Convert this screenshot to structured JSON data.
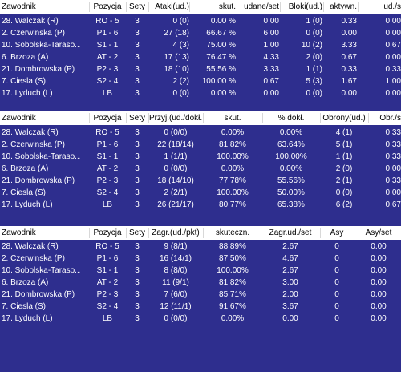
{
  "tables": [
    {
      "columns": [
        "Zawodnik",
        "Pozycja",
        "Sety",
        "Ataki(ud.)",
        "skut.",
        "udane/set",
        "Bloki(ud.)",
        "aktywn.",
        "ud./s"
      ],
      "rows": [
        [
          "28. Walczak (R)",
          "RO - 5",
          "3",
          "0 (0)",
          "0.00 %",
          "0.00",
          "1 (0)",
          "0.33",
          "0.00"
        ],
        [
          "2. Czerwinska (P)",
          "P1 - 6",
          "3",
          "27 (18)",
          "66.67 %",
          "6.00",
          "0 (0)",
          "0.00",
          "0.00"
        ],
        [
          "10. Sobolska-Taraso...",
          "S1 - 1",
          "3",
          "4 (3)",
          "75.00 %",
          "1.00",
          "10 (2)",
          "3.33",
          "0.67"
        ],
        [
          "6. Brzoza (A)",
          "AT - 2",
          "3",
          "17 (13)",
          "76.47 %",
          "4.33",
          "2 (0)",
          "0.67",
          "0.00"
        ],
        [
          "21. Dombrowska (P)",
          "P2 - 3",
          "3",
          "18 (10)",
          "55.56 %",
          "3.33",
          "1 (1)",
          "0.33",
          "0.33"
        ],
        [
          "7. Ciesla (S)",
          "S2 - 4",
          "3",
          "2 (2)",
          "100.00 %",
          "0.67",
          "5 (3)",
          "1.67",
          "1.00"
        ],
        [
          "17. Lyduch (L)",
          "LB",
          "3",
          "0 (0)",
          "0.00 %",
          "0.00",
          "0 (0)",
          "0.00",
          "0.00"
        ]
      ]
    },
    {
      "columns": [
        "Zawodnik",
        "Pozycja",
        "Sety",
        "Przyj.(ud./dokł.)",
        "skut.",
        "% dokł.",
        "Obrony(ud.)",
        "Obr./s"
      ],
      "rows": [
        [
          "28. Walczak (R)",
          "RO - 5",
          "3",
          "0 (0/0)",
          "0.00%",
          "0.00%",
          "4 (1)",
          "0.33"
        ],
        [
          "2. Czerwinska (P)",
          "P1 - 6",
          "3",
          "22 (18/14)",
          "81.82%",
          "63.64%",
          "5 (1)",
          "0.33"
        ],
        [
          "10. Sobolska-Taraso...",
          "S1 - 1",
          "3",
          "1 (1/1)",
          "100.00%",
          "100.00%",
          "1 (1)",
          "0.33"
        ],
        [
          "6. Brzoza (A)",
          "AT - 2",
          "3",
          "0 (0/0)",
          "0.00%",
          "0.00%",
          "2 (0)",
          "0.00"
        ],
        [
          "21. Dombrowska (P)",
          "P2 - 3",
          "3",
          "18 (14/10)",
          "77.78%",
          "55.56%",
          "2 (1)",
          "0.33"
        ],
        [
          "7. Ciesla (S)",
          "S2 - 4",
          "3",
          "2 (2/1)",
          "100.00%",
          "50.00%",
          "0 (0)",
          "0.00"
        ],
        [
          "17. Lyduch (L)",
          "LB",
          "3",
          "26 (21/17)",
          "80.77%",
          "65.38%",
          "6 (2)",
          "0.67"
        ]
      ]
    },
    {
      "columns": [
        "Zawodnik",
        "Pozycja",
        "Sety",
        "Zagr.(ud./pkt)",
        "skuteczn.",
        "Zagr.ud./set",
        "Asy",
        "Asy/set"
      ],
      "rows": [
        [
          "28. Walczak (R)",
          "RO - 5",
          "3",
          "9 (8/1)",
          "88.89%",
          "2.67",
          "0",
          "0.00"
        ],
        [
          "2. Czerwinska (P)",
          "P1 - 6",
          "3",
          "16 (14/1)",
          "87.50%",
          "4.67",
          "0",
          "0.00"
        ],
        [
          "10. Sobolska-Taraso...",
          "S1 - 1",
          "3",
          "8 (8/0)",
          "100.00%",
          "2.67",
          "0",
          "0.00"
        ],
        [
          "6. Brzoza (A)",
          "AT - 2",
          "3",
          "11 (9/1)",
          "81.82%",
          "3.00",
          "0",
          "0.00"
        ],
        [
          "21. Dombrowska (P)",
          "P2 - 3",
          "3",
          "7 (6/0)",
          "85.71%",
          "2.00",
          "0",
          "0.00"
        ],
        [
          "7. Ciesla (S)",
          "S2 - 4",
          "3",
          "12 (11/1)",
          "91.67%",
          "3.67",
          "0",
          "0.00"
        ],
        [
          "17. Lyduch (L)",
          "LB",
          "3",
          "0 (0/0)",
          "0.00%",
          "0.00",
          "0",
          "0.00"
        ]
      ]
    }
  ],
  "colors": {
    "background": "#2e2e8e",
    "header": "#ffffff",
    "text": "#ffffff",
    "header_text": "#000000"
  }
}
